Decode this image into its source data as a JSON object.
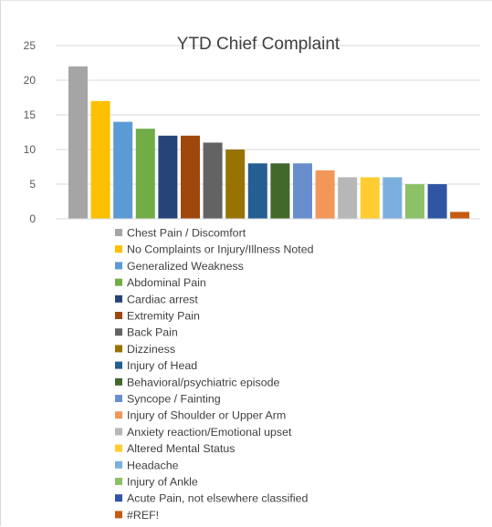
{
  "chart_data": {
    "type": "bar",
    "title": "YTD Chief Complaint",
    "xlabel": "",
    "ylabel": "",
    "ylim": [
      0,
      25
    ],
    "yticks": [
      0,
      5,
      10,
      15,
      20,
      25
    ],
    "grid": true,
    "legend_position": "bottom",
    "series": [
      {
        "name": "Chest Pain / Discomfort",
        "value": 22,
        "color": "#a5a5a5"
      },
      {
        "name": "No Complaints or Injury/Illness Noted",
        "value": 17,
        "color": "#ffc000"
      },
      {
        "name": "Generalized Weakness",
        "value": 14,
        "color": "#5b9bd5"
      },
      {
        "name": "Abdominal Pain",
        "value": 13,
        "color": "#70ad47"
      },
      {
        "name": "Cardiac arrest",
        "value": 12,
        "color": "#264478"
      },
      {
        "name": "Extremity Pain",
        "value": 12,
        "color": "#9e480e"
      },
      {
        "name": "Back Pain",
        "value": 11,
        "color": "#636363"
      },
      {
        "name": "Dizziness",
        "value": 10,
        "color": "#997300"
      },
      {
        "name": "Injury of Head",
        "value": 8,
        "color": "#255e91"
      },
      {
        "name": "Behavioral/psychiatric episode",
        "value": 8,
        "color": "#43682b"
      },
      {
        "name": "Syncope / Fainting",
        "value": 8,
        "color": "#698ed0"
      },
      {
        "name": "Injury of Shoulder or Upper Arm",
        "value": 7,
        "color": "#f1975a"
      },
      {
        "name": "Anxiety reaction/Emotional upset",
        "value": 6,
        "color": "#b7b7b7"
      },
      {
        "name": "Altered Mental Status",
        "value": 6,
        "color": "#ffcd33"
      },
      {
        "name": "Headache",
        "value": 6,
        "color": "#7cafdd"
      },
      {
        "name": "Injury of Ankle",
        "value": 5,
        "color": "#8cc168"
      },
      {
        "name": "Acute Pain, not elsewhere classified",
        "value": 5,
        "color": "#2f55a4"
      },
      {
        "name": "#REF!",
        "value": 1,
        "color": "#c55a11"
      }
    ]
  }
}
